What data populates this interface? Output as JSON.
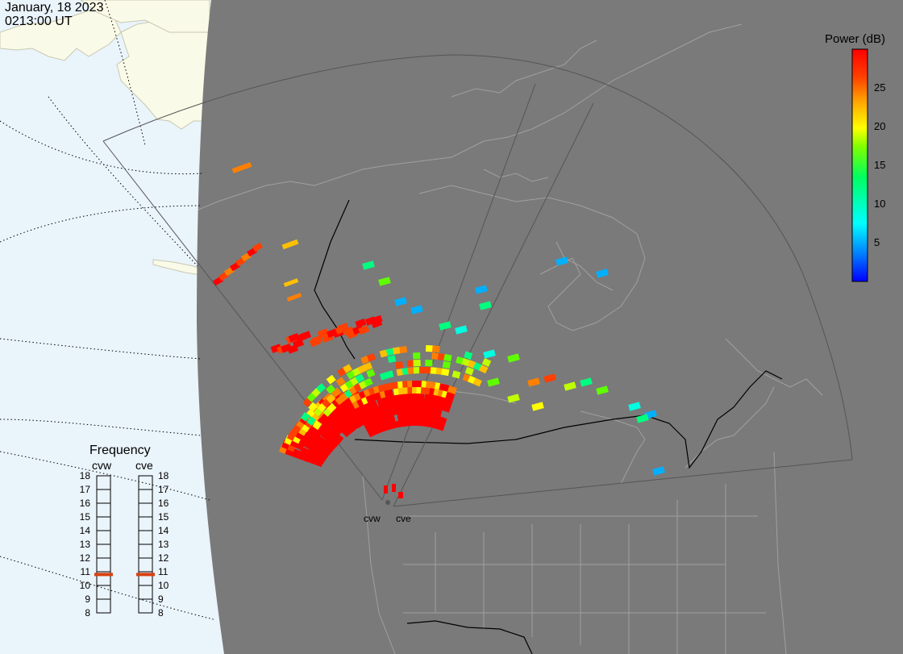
{
  "header": {
    "date": "January, 18 2023",
    "time": "0213:00 UT"
  },
  "colorbar": {
    "title": "Power (dB)",
    "ticks": [
      "25",
      "20",
      "15",
      "10",
      "5"
    ],
    "range": [
      0,
      30
    ],
    "colors": [
      "#0000ff",
      "#00a0ff",
      "#00ffd0",
      "#00ff60",
      "#80ff00",
      "#ffff00",
      "#ffa000",
      "#ff4000",
      "#ff0000"
    ]
  },
  "radars": [
    {
      "code": "cvw",
      "frequency_mhz": 10.8
    },
    {
      "code": "cve",
      "frequency_mhz": 10.8
    }
  ],
  "frequency_panel": {
    "title": "Frequency",
    "scale": [
      "18",
      "17",
      "16",
      "15",
      "14",
      "13",
      "12",
      "11",
      "10",
      "9",
      "8"
    ],
    "scale_range": [
      8,
      18
    ],
    "indicator_color": "#d84010"
  },
  "map_colors": {
    "ocean": "#eaf4fb",
    "land_day": "#fafae8",
    "night": "#7a7a7a",
    "coast_night": "#9a9a9a",
    "fov": "#555555"
  }
}
